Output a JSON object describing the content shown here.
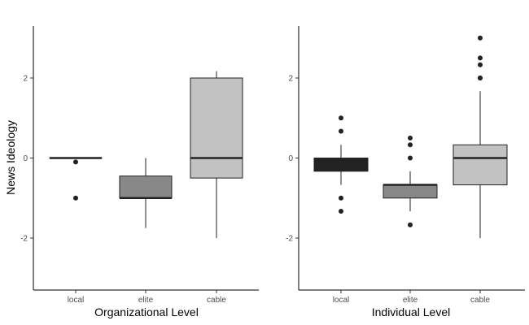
{
  "chart_data": {
    "type": "boxplot",
    "ylabel": "News Ideology",
    "ylim": [
      -3.3,
      3.3
    ],
    "yticks": [
      "-2",
      "0",
      "2"
    ],
    "grid": false,
    "panels": [
      {
        "xlabel": "Organizational Level",
        "categories": [
          "local",
          "elite",
          "cable"
        ],
        "boxes": [
          {
            "q1": 0,
            "median": 0,
            "q3": 0,
            "whisker_low": 0,
            "whisker_high": 0,
            "outliers": [
              -0.1,
              -1.0
            ],
            "color": "#222222"
          },
          {
            "q1": -1.0,
            "median": -1.0,
            "q3": -0.45,
            "whisker_low": -1.75,
            "whisker_high": 0,
            "outliers": [],
            "color": "#888888"
          },
          {
            "q1": -0.5,
            "median": 0,
            "q3": 2.0,
            "whisker_low": -2.0,
            "whisker_high": 2.17,
            "outliers": [],
            "color": "#c2c2c2"
          }
        ]
      },
      {
        "xlabel": "Individual Level",
        "categories": [
          "local",
          "elite",
          "cable"
        ],
        "boxes": [
          {
            "q1": -0.33,
            "median": -0.15,
            "q3": 0,
            "whisker_low": -0.67,
            "whisker_high": 0.33,
            "outliers": [
              1.0,
              0.67,
              -1.0,
              -1.33
            ],
            "color": "#222222"
          },
          {
            "q1": -1.0,
            "median": -0.67,
            "q3": -0.67,
            "whisker_low": -1.33,
            "whisker_high": -0.33,
            "outliers": [
              0.5,
              0.33,
              0,
              -1.67
            ],
            "color": "#888888"
          },
          {
            "q1": -0.67,
            "median": 0,
            "q3": 0.33,
            "whisker_low": -2.0,
            "whisker_high": 1.67,
            "outliers": [
              2.0,
              2.0,
              2.33,
              2.5,
              3.0
            ],
            "color": "#c2c2c2"
          }
        ]
      }
    ]
  }
}
